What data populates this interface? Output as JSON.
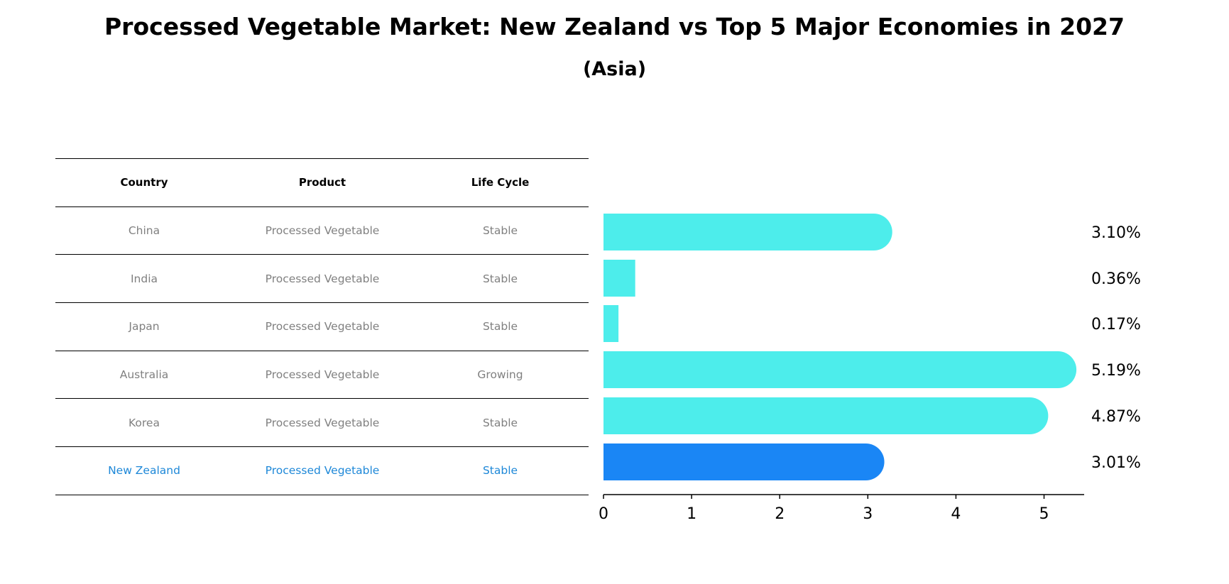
{
  "title": "Processed Vegetable Market: New Zealand vs Top 5 Major Economies in 2027",
  "subtitle": "(Asia)",
  "table": {
    "headers": [
      "Country",
      "Product",
      "Life Cycle"
    ],
    "rows": [
      [
        "China",
        "Processed Vegetable",
        "Stable"
      ],
      [
        "India",
        "Processed Vegetable",
        "Stable"
      ],
      [
        "Japan",
        "Processed Vegetable",
        "Stable"
      ],
      [
        "Australia",
        "Processed Vegetable",
        "Growing"
      ],
      [
        "Korea",
        "Processed Vegetable",
        "Stable"
      ],
      [
        "New Zealand",
        "Processed Vegetable",
        "Stable"
      ]
    ]
  },
  "chart_data": {
    "type": "bar",
    "orientation": "horizontal",
    "categories": [
      "China",
      "India",
      "Japan",
      "Australia",
      "Korea",
      "New Zealand"
    ],
    "values": [
      3.1,
      0.36,
      0.17,
      5.19,
      4.87,
      3.01
    ],
    "data_labels": [
      "3.10%",
      "0.36%",
      "0.17%",
      "5.19%",
      "4.87%",
      "3.01%"
    ],
    "highlight": "New Zealand",
    "xticks": [
      "0",
      "1",
      "2",
      "3",
      "4",
      "5"
    ],
    "xlim": [
      0,
      5.45
    ],
    "colors": {
      "default": "#4DEDEB",
      "highlight": "#1A86F5"
    }
  }
}
